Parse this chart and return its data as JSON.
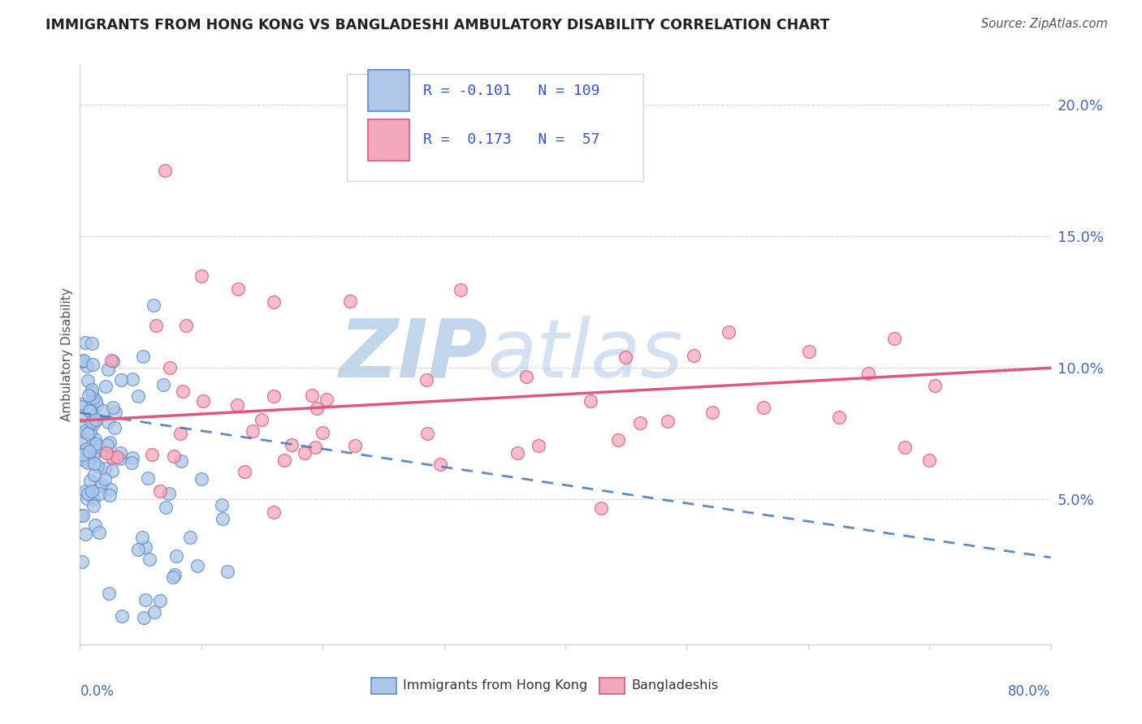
{
  "title": "IMMIGRANTS FROM HONG KONG VS BANGLADESHI AMBULATORY DISABILITY CORRELATION CHART",
  "source": "Source: ZipAtlas.com",
  "ylabel": "Ambulatory Disability",
  "xlim": [
    0.0,
    0.8
  ],
  "ylim": [
    -0.005,
    0.215
  ],
  "hk_R": "-0.101",
  "hk_N": "109",
  "bd_R": "0.173",
  "bd_N": "57",
  "legend_label_hk": "Immigrants from Hong Kong",
  "legend_label_bd": "Bangladeshis",
  "hk_color": "#aec6e8",
  "hk_edge_color": "#5b8fc9",
  "bd_color": "#f4a8bc",
  "bd_edge_color": "#e05878",
  "hk_line_color": "#4477bb",
  "bd_line_color": "#e05878",
  "watermark_text": "ZIPatlas",
  "watermark_color": "#dde8f5",
  "title_color": "#222222",
  "source_color": "#555555",
  "tick_color": "#4466bb",
  "axis_label_color": "#555555",
  "grid_color": "#cccccc",
  "legend_text_color": "#3355cc"
}
